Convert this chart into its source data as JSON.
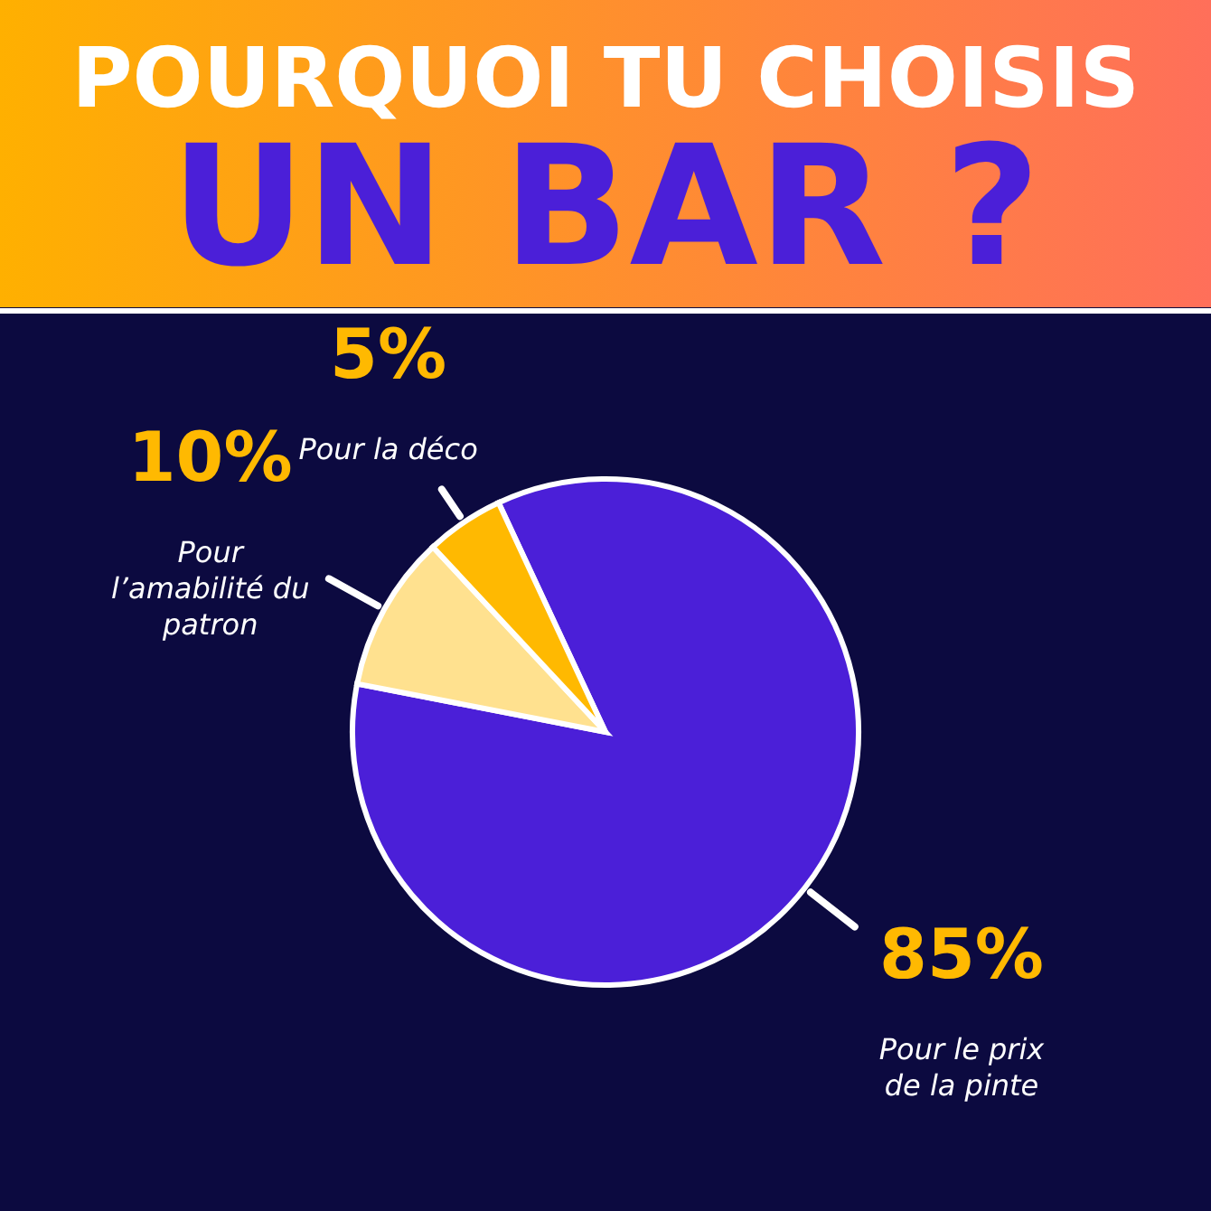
{
  "chart_data": {
    "type": "pie",
    "title": "POURQUOI TU CHOISIS",
    "subtitle": "UN BAR ?",
    "categories": [
      "Pour le prix de la pinte",
      "Pour l’amabilité du patron",
      "Pour la déco"
    ],
    "values": [
      85,
      10,
      5
    ],
    "colors": [
      "#4b1fd8",
      "#ffe18f",
      "#ffb901"
    ],
    "value_labels": [
      "85%",
      "10%",
      "5%"
    ]
  }
}
